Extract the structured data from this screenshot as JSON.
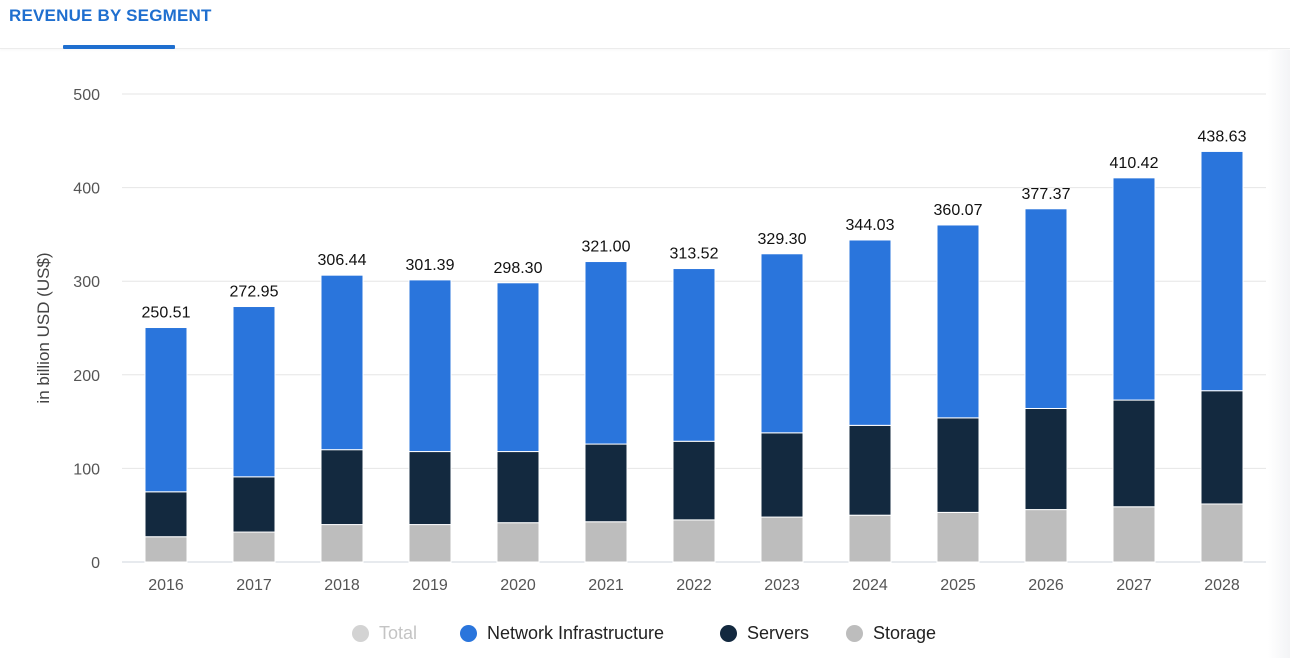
{
  "tab": {
    "label": "REVENUE BY SEGMENT"
  },
  "colors": {
    "accent": "#1f6fcf",
    "network": "#2a75dc",
    "servers": "#13293f",
    "storage": "#bdbdbd",
    "total_disabled": "#d3d3d3"
  },
  "legend": {
    "total": "Total",
    "network": "Network Infrastructure",
    "servers": "Servers",
    "storage": "Storage"
  },
  "chart_data": {
    "type": "bar",
    "stacked": true,
    "ylabel": "in billion USD (US$)",
    "xlabel": "",
    "ylim": [
      0,
      500
    ],
    "yticks": [
      0,
      100,
      200,
      300,
      400,
      500
    ],
    "grid": true,
    "legend_position": "bottom",
    "categories": [
      "2016",
      "2017",
      "2018",
      "2019",
      "2020",
      "2021",
      "2022",
      "2023",
      "2024",
      "2025",
      "2026",
      "2027",
      "2028"
    ],
    "series": [
      {
        "name": "Storage",
        "key": "storage",
        "values": [
          27,
          32,
          40,
          40,
          42,
          43,
          45,
          48,
          50,
          53,
          56,
          59,
          62
        ]
      },
      {
        "name": "Servers",
        "key": "servers",
        "values": [
          48,
          59,
          80,
          78,
          76,
          83,
          84,
          90,
          96,
          101,
          108,
          114,
          121
        ]
      },
      {
        "name": "Network Infrastructure",
        "key": "network",
        "values": [
          175.51,
          181.95,
          186.44,
          183.39,
          180.3,
          195.0,
          184.52,
          191.3,
          198.03,
          206.07,
          213.37,
          237.42,
          255.63
        ]
      }
    ],
    "totals": [
      "250.51",
      "272.95",
      "306.44",
      "301.39",
      "298.30",
      "321.00",
      "313.52",
      "329.30",
      "344.03",
      "360.07",
      "377.37",
      "410.42",
      "438.63"
    ]
  }
}
